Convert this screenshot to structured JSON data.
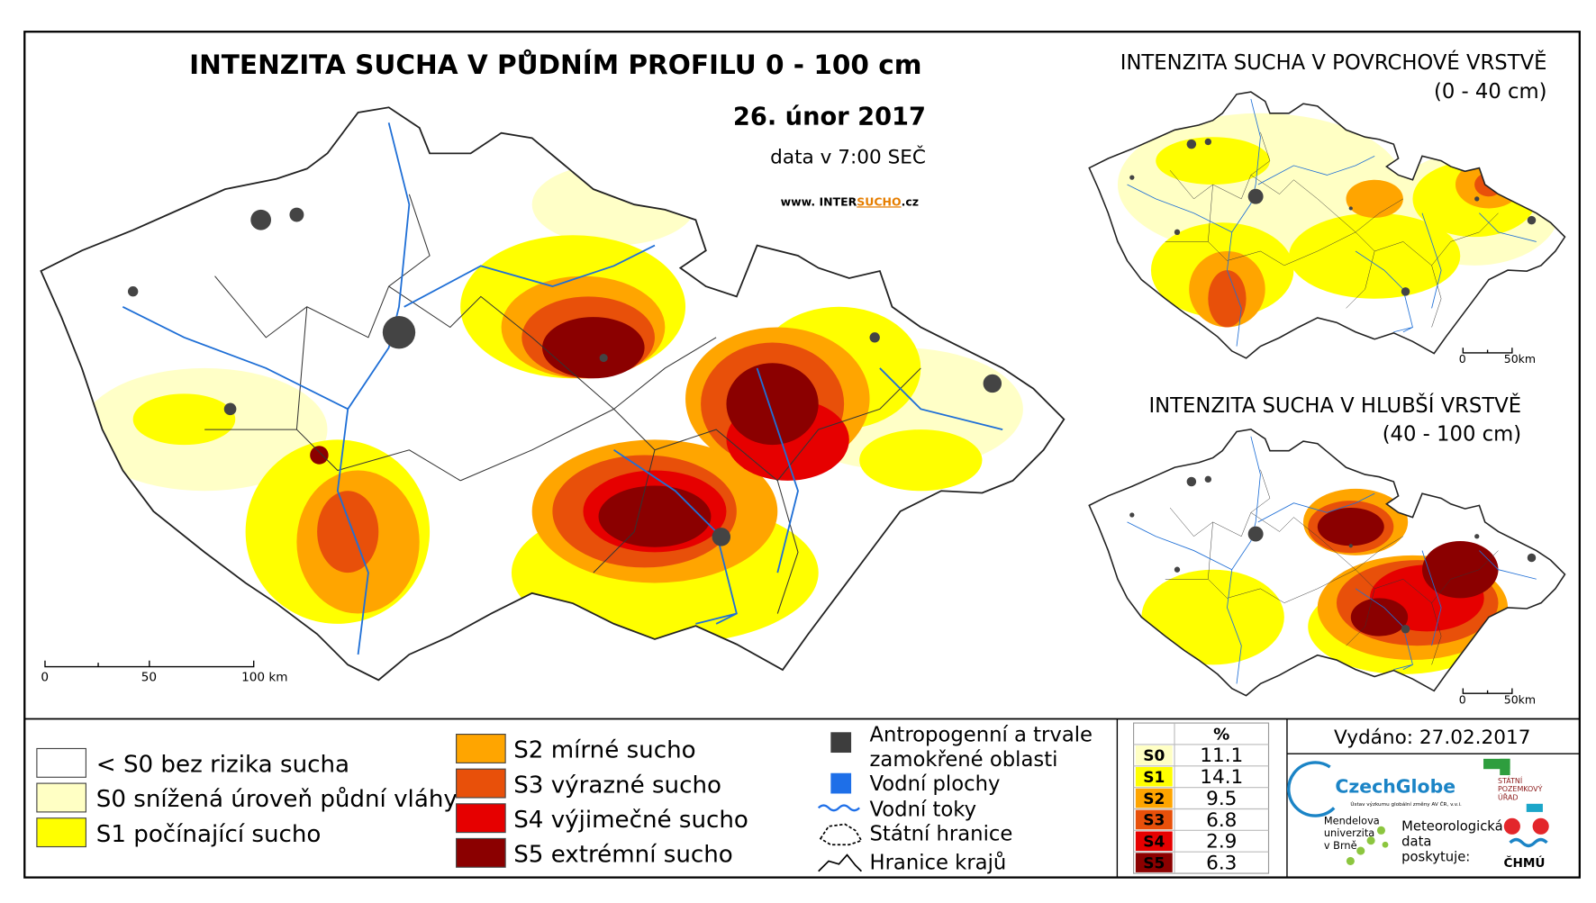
{
  "main_map": {
    "title": "INTENZITA SUCHA V PŮDNÍM PROFILU 0 - 100 cm",
    "date": "26. únor 2017",
    "data_time": "data v 7:00 SEČ",
    "website": [
      "www. INTER",
      "SUCHO",
      ".cz"
    ],
    "scale_labels": [
      "0",
      "50",
      "100 km"
    ]
  },
  "surface_map": {
    "title": "INTENZITA SUCHA V POVRCHOVÉ VRSTVĚ",
    "subtitle": "(0 - 40 cm)",
    "scale_labels": [
      "0",
      "50km"
    ]
  },
  "deep_map": {
    "title": "INTENZITA SUCHA V HLUBŠÍ VRSTVĚ",
    "subtitle": "(40 - 100 cm)",
    "scale_labels": [
      "0",
      "50km"
    ]
  },
  "legend": {
    "drought_classes": [
      {
        "label": "< S0 bez rizika sucha",
        "color": "#ffffff"
      },
      {
        "label": "S0 snížená úroveň půdní vláhy",
        "color": "#ffffc4"
      },
      {
        "label": "S1 počínající sucho",
        "color": "#ffff00"
      },
      {
        "label": "S2 mírné sucho",
        "color": "#ffa500"
      },
      {
        "label": "S3 výrazné sucho",
        "color": "#e8500a"
      },
      {
        "label": "S4 výjimečné sucho",
        "color": "#e60000"
      },
      {
        "label": "S5 extrémní sucho",
        "color": "#8b0000"
      }
    ],
    "symbols": [
      [
        "Antropogenní a trvale",
        "zamokřené oblasti"
      ],
      [
        "Vodní plochy"
      ],
      [
        "Vodní toky"
      ],
      [
        "Státní hranice"
      ],
      [
        "Hranice krajů"
      ]
    ]
  },
  "table": {
    "header": "%",
    "rows": [
      {
        "class": "S0",
        "percent": 11.1,
        "color": "#ffffc4"
      },
      {
        "class": "S1",
        "percent": 14.1,
        "color": "#ffff00"
      },
      {
        "class": "S2",
        "percent": 9.5,
        "color": "#ffa500"
      },
      {
        "class": "S3",
        "percent": 6.8,
        "color": "#e8500a"
      },
      {
        "class": "S4",
        "percent": 2.9,
        "color": "#e60000"
      },
      {
        "class": "S5",
        "percent": 6.3,
        "color": "#8b0000"
      }
    ]
  },
  "issued": "Vydáno: 27.02.2017",
  "logos": {
    "czechglobe": "CzechGlobe",
    "czechglobe_sub": "Ústav výzkumu globální změny AV ČR, v.v.i.",
    "mendel": [
      "Mendelova",
      "univerzita",
      "v Brně"
    ],
    "spu": [
      "STÁTNÍ",
      "POZEMKOVÝ",
      "ÚŘAD"
    ],
    "meteo": [
      "Meteorologická",
      "data",
      "poskytuje:"
    ],
    "chmu": "ČHMÚ"
  }
}
